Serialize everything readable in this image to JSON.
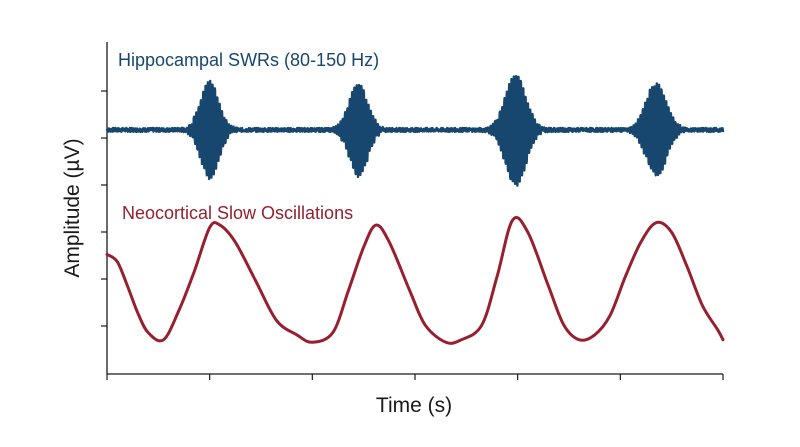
{
  "chart_data": {
    "type": "line",
    "xlabel": "Time (s)",
    "ylabel": "Amplitude (µV)",
    "x_ticks": 6,
    "y_ticks": 6,
    "grid": false,
    "legend": "inline-labels",
    "colors": {
      "swr": "#17466f",
      "so": "#96202f",
      "axis": "#1a1a1a"
    },
    "series": [
      {
        "name": "Hippocampal SWRs (80-150 Hz)",
        "kind": "ripple-bursts",
        "baseline": 0,
        "noise_amplitude": 0.04,
        "bursts": [
          {
            "center": 1.0,
            "amplitude": 1.0,
            "width": 0.09,
            "cycles_per_unit": 44
          },
          {
            "center": 2.45,
            "amplitude": 0.95,
            "width": 0.09,
            "cycles_per_unit": 44
          },
          {
            "center": 3.98,
            "amplitude": 1.15,
            "width": 0.1,
            "cycles_per_unit": 44
          },
          {
            "center": 5.35,
            "amplitude": 0.95,
            "width": 0.1,
            "cycles_per_unit": 44
          }
        ]
      },
      {
        "name": "Neocortical Slow Oscillations",
        "kind": "slow-wave",
        "points": [
          [
            0.0,
            -2.55
          ],
          [
            0.1,
            -2.7
          ],
          [
            0.2,
            -3.2
          ],
          [
            0.3,
            -3.75
          ],
          [
            0.4,
            -4.15
          ],
          [
            0.55,
            -4.3
          ],
          [
            0.7,
            -3.7
          ],
          [
            0.85,
            -2.9
          ],
          [
            1.0,
            -2.0
          ],
          [
            1.1,
            -1.95
          ],
          [
            1.25,
            -2.3
          ],
          [
            1.45,
            -3.1
          ],
          [
            1.65,
            -3.9
          ],
          [
            1.85,
            -4.2
          ],
          [
            2.0,
            -4.35
          ],
          [
            2.2,
            -4.15
          ],
          [
            2.35,
            -3.3
          ],
          [
            2.5,
            -2.4
          ],
          [
            2.62,
            -1.95
          ],
          [
            2.75,
            -2.3
          ],
          [
            2.95,
            -3.3
          ],
          [
            3.1,
            -4.0
          ],
          [
            3.3,
            -4.35
          ],
          [
            3.45,
            -4.3
          ],
          [
            3.65,
            -4.0
          ],
          [
            3.8,
            -3.0
          ],
          [
            3.95,
            -1.85
          ],
          [
            4.1,
            -2.1
          ],
          [
            4.3,
            -3.2
          ],
          [
            4.45,
            -4.0
          ],
          [
            4.6,
            -4.3
          ],
          [
            4.75,
            -4.2
          ],
          [
            4.9,
            -3.8
          ],
          [
            5.05,
            -3.0
          ],
          [
            5.2,
            -2.3
          ],
          [
            5.35,
            -1.9
          ],
          [
            5.5,
            -2.1
          ],
          [
            5.65,
            -2.8
          ],
          [
            5.8,
            -3.6
          ],
          [
            5.95,
            -4.1
          ],
          [
            6.0,
            -4.3
          ]
        ]
      }
    ],
    "xlim": [
      0,
      6
    ],
    "ylim": [
      -5,
      1.8
    ]
  }
}
